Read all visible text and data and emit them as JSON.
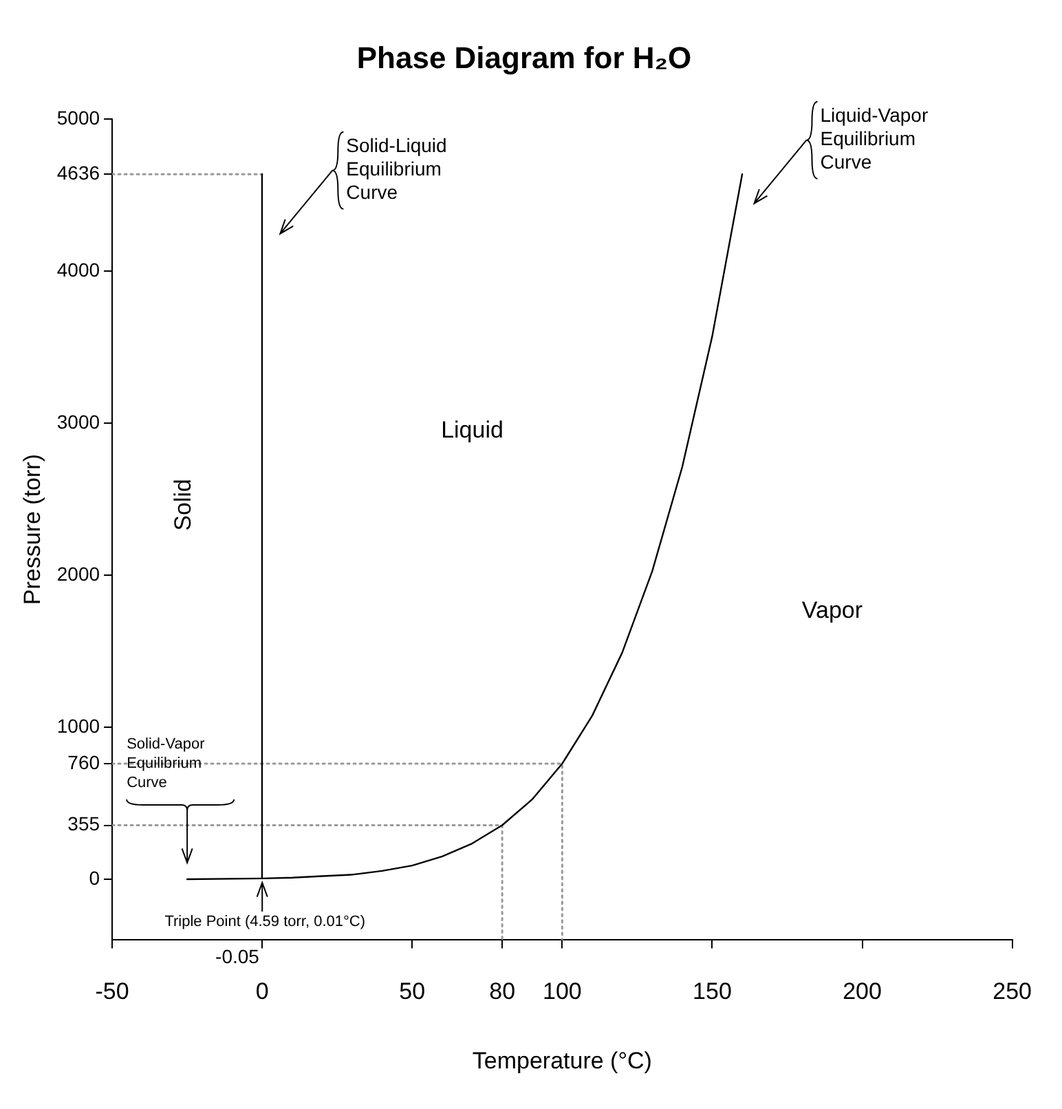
{
  "chart_data": {
    "type": "line",
    "title": "Phase Diagram for H₂O",
    "xlabel": "Temperature (°C)",
    "ylabel": "Pressure (torr)",
    "xlim": [
      -50,
      250
    ],
    "ylim": [
      -400,
      5000
    ],
    "xticks": [
      -50,
      0,
      50,
      80,
      100,
      150,
      200,
      250
    ],
    "yticks": [
      0,
      355,
      760,
      1000,
      2000,
      3000,
      4000,
      4636,
      5000
    ],
    "grid": false,
    "legend": false,
    "marker": "none",
    "series": [
      {
        "color": "#000000",
        "x": [
          -25,
          0.01,
          10,
          20,
          30,
          40,
          50,
          60,
          70,
          80,
          90,
          100,
          110,
          120,
          130,
          140,
          150,
          160
        ],
        "values": [
          0,
          5,
          10,
          20,
          30,
          55,
          90,
          150,
          235,
          355,
          525,
          760,
          1075,
          1490,
          2025,
          2710,
          3570,
          4636
        ]
      },
      {
        "color": "#000000",
        "x": [
          0.01,
          -0.05
        ],
        "values": [
          5,
          4636
        ]
      },
      {
        "color": "#999999",
        "line_style": "dotted",
        "x": [
          -50,
          0
        ],
        "values": [
          4636,
          4636
        ]
      },
      {
        "color": "#999999",
        "line_style": "dotted",
        "x": [
          -50,
          100,
          100
        ],
        "values": [
          760,
          760,
          -400
        ]
      },
      {
        "color": "#999999",
        "line_style": "dotted",
        "x": [
          -50,
          80,
          80
        ],
        "values": [
          355,
          355,
          -400
        ]
      }
    ],
    "annotations": [
      "Solid",
      "Liquid",
      "Vapor",
      "Solid-Liquid\nEquilibrium\nCurve",
      "Liquid-Vapor\nEquilibrium\nCurve",
      "Solid-Vapor\nEquilibrium\nCurve",
      {
        "text": "Triple Point (4.59 torr, 0.01°C)",
        "x": 0.01,
        "y": 4.59
      },
      "-0.05"
    ]
  }
}
